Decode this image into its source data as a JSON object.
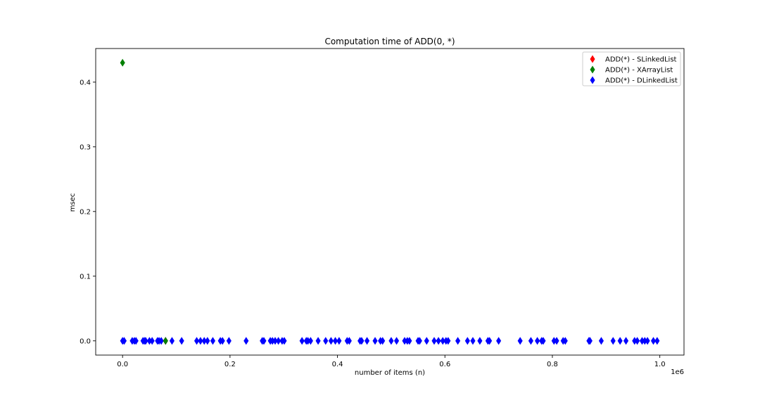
{
  "chart_data": {
    "type": "scatter",
    "title": "Computation time of ADD(0, *)",
    "xlabel": "number of items (n)",
    "ylabel": "msec",
    "x_offset_label": "1e6",
    "xlim": [
      -50000,
      1045000
    ],
    "ylim": [
      -0.022,
      0.452
    ],
    "x_ticks": [
      0,
      200000,
      400000,
      600000,
      800000,
      1000000
    ],
    "x_tick_labels": [
      "0.0",
      "0.2",
      "0.4",
      "0.6",
      "0.8",
      "1.0"
    ],
    "y_ticks": [
      0.0,
      0.1,
      0.2,
      0.3,
      0.4
    ],
    "y_tick_labels": [
      "0.0",
      "0.1",
      "0.2",
      "0.3",
      "0.4"
    ],
    "grid": false,
    "legend_position": "top-right",
    "marker": "thin-diamond",
    "series": [
      {
        "name": "ADD(*) - SLinkedList",
        "color": "#ff0000",
        "x": [
          80000
        ],
        "y": [
          0.0
        ]
      },
      {
        "name": "ADD(*) - XArrayList",
        "color": "#008000",
        "x": [
          0,
          80000
        ],
        "y": [
          0.43,
          0.0
        ]
      },
      {
        "name": "ADD(*) - DLinkedList",
        "color": "#0000ff",
        "x": [
          0,
          3000,
          18000,
          22000,
          25000,
          38000,
          41000,
          43000,
          50000,
          55000,
          65000,
          68000,
          72000,
          80000,
          92000,
          110000,
          138000,
          145000,
          152000,
          158000,
          168000,
          182000,
          186000,
          198000,
          230000,
          260000,
          263000,
          275000,
          279000,
          284000,
          290000,
          297000,
          301000,
          334000,
          342000,
          345000,
          350000,
          364000,
          378000,
          388000,
          396000,
          403000,
          418000,
          422000,
          442000,
          445000,
          455000,
          470000,
          480000,
          484000,
          500000,
          510000,
          525000,
          530000,
          534000,
          550000,
          553000,
          566000,
          580000,
          588000,
          596000,
          602000,
          606000,
          624000,
          642000,
          652000,
          665000,
          680000,
          683000,
          700000,
          740000,
          760000,
          772000,
          780000,
          783000,
          803000,
          808000,
          820000,
          824000,
          868000,
          870000,
          891000,
          913000,
          926000,
          937000,
          953000,
          958000,
          967000,
          972000,
          977000,
          988000,
          995000
        ],
        "y": [
          0,
          0,
          0,
          0,
          0,
          0,
          0,
          0,
          0,
          0,
          0,
          0,
          0,
          0,
          0,
          0,
          0,
          0,
          0,
          0,
          0,
          0,
          0,
          0,
          0,
          0,
          0,
          0,
          0,
          0,
          0,
          0,
          0,
          0,
          0,
          0,
          0,
          0,
          0,
          0,
          0,
          0,
          0,
          0,
          0,
          0,
          0,
          0,
          0,
          0,
          0,
          0,
          0,
          0,
          0,
          0,
          0,
          0,
          0,
          0,
          0,
          0,
          0,
          0,
          0,
          0,
          0,
          0,
          0,
          0,
          0,
          0,
          0,
          0,
          0,
          0,
          0,
          0,
          0,
          0,
          0,
          0,
          0,
          0,
          0,
          0,
          0,
          0,
          0,
          0,
          0,
          0
        ]
      }
    ]
  }
}
